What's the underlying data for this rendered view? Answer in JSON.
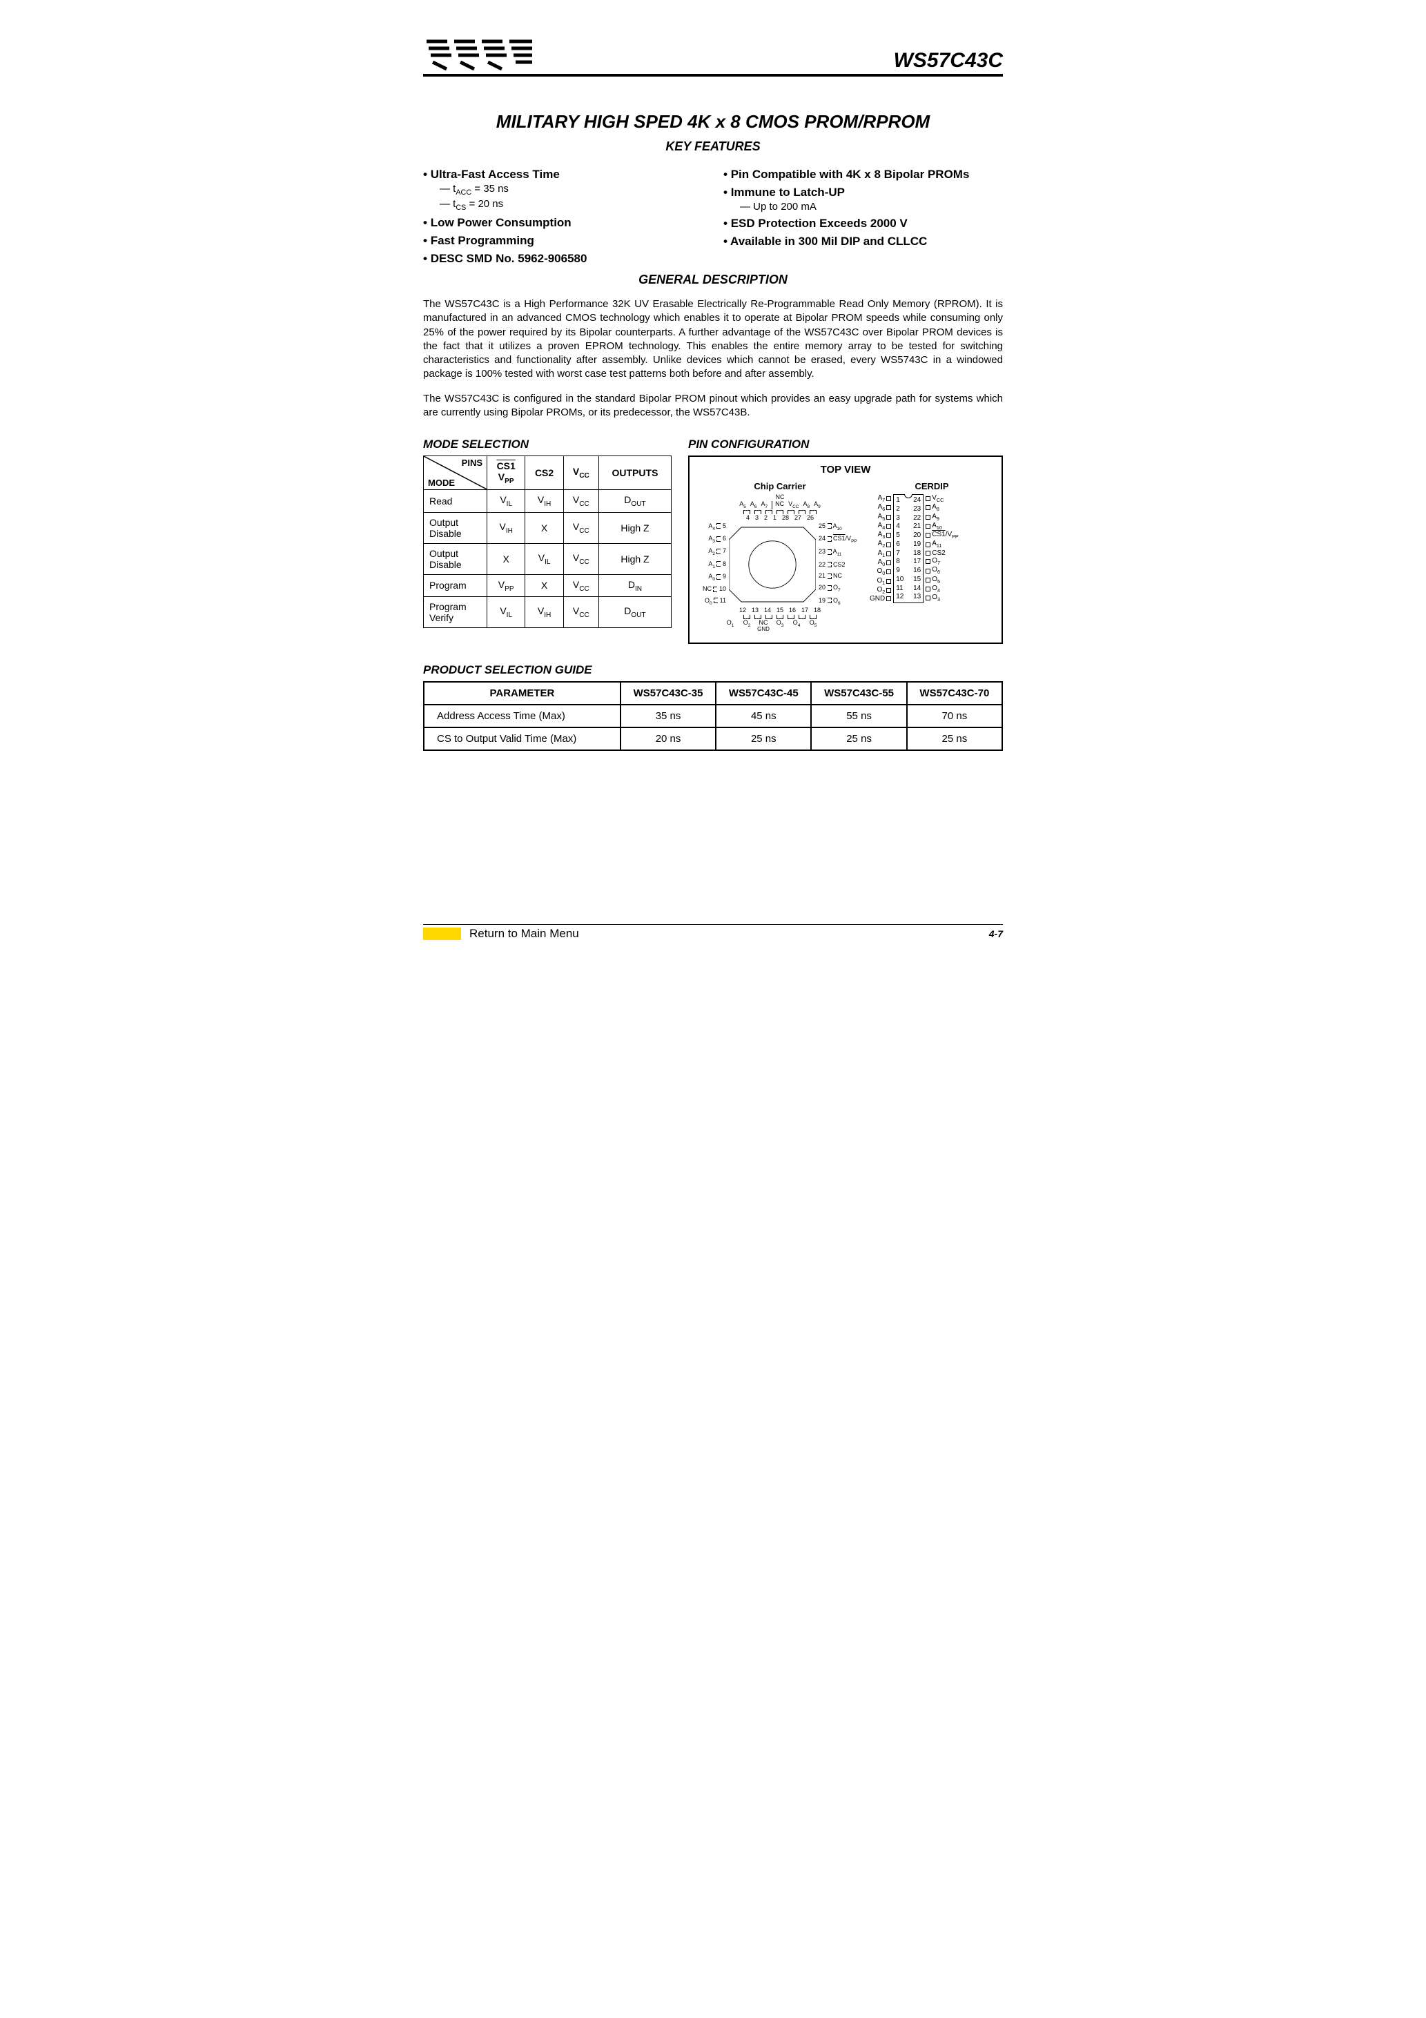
{
  "header": {
    "part_number": "WS57C43C"
  },
  "title": "MILITARY HIGH SPED 4K x 8 CMOS PROM/RPROM",
  "headings": {
    "key_features": "KEY FEATURES",
    "general_description": "GENERAL DESCRIPTION",
    "mode_selection": "MODE SELECTION",
    "pin_configuration": "PIN CONFIGURATION",
    "product_selection_guide": "PRODUCT SELECTION GUIDE"
  },
  "features": {
    "left": [
      {
        "t": "main",
        "text": "Ultra-Fast Access Time"
      },
      {
        "t": "sub",
        "text": "tACC = 35 ns"
      },
      {
        "t": "sub",
        "text": "tCS = 20 ns"
      },
      {
        "t": "main",
        "text": "Low Power Consumption"
      },
      {
        "t": "main",
        "text": "Fast Programming"
      },
      {
        "t": "main",
        "text": "DESC SMD No. 5962-906580"
      }
    ],
    "right": [
      {
        "t": "main",
        "text": "Pin Compatible with 4K x 8 Bipolar PROMs"
      },
      {
        "t": "main",
        "text": "Immune to Latch-UP"
      },
      {
        "t": "sub",
        "text": "Up to 200 mA"
      },
      {
        "t": "main",
        "text": "ESD Protection Exceeds 2000 V"
      },
      {
        "t": "main",
        "text": "Available in 300 Mil DIP and CLLCC"
      }
    ]
  },
  "general_description": {
    "p1": "The WS57C43C is a High Performance 32K UV Erasable Electrically Re-Programmable Read Only Memory (RPROM). It is manufactured in an advanced CMOS technology which enables it to operate at Bipolar PROM speeds while consuming only 25% of the power required by its Bipolar counterparts. A further advantage of the WS57C43C over Bipolar PROM devices is the fact that it utilizes a proven EPROM technology. This enables the entire memory array to be tested for switching characteristics and functionality after assembly. Unlike devices which cannot be erased, every WS5743C in a windowed package is 100% tested with worst case test patterns both before and after assembly.",
    "p2": "The WS57C43C is configured in the standard Bipolar PROM pinout which provides an easy upgrade path for systems which are currently using Bipolar PROMs, or its predecessor, the WS57C43B."
  },
  "mode_table": {
    "corner": {
      "pins": "PINS",
      "mode": "MODE"
    },
    "columns": [
      "CS1_VPP",
      "CS2",
      "VCC",
      "OUTPUTS"
    ],
    "col_headers_html": [
      "<span class='overline'>CS1</span><br>V<sub>PP</sub>",
      "CS2",
      "V<sub>CC</sub>",
      "OUTPUTS"
    ],
    "rows": [
      {
        "mode": "Read",
        "cells": [
          "V<sub>IL</sub>",
          "V<sub>IH</sub>",
          "V<sub>CC</sub>",
          "D<sub>OUT</sub>"
        ]
      },
      {
        "mode": "Output<br>Disable",
        "cells": [
          "V<sub>IH</sub>",
          "X",
          "V<sub>CC</sub>",
          "High Z"
        ]
      },
      {
        "mode": "Output<br>Disable",
        "cells": [
          "X",
          "V<sub>IL</sub>",
          "V<sub>CC</sub>",
          "High Z"
        ]
      },
      {
        "mode": "Program",
        "cells": [
          "V<sub>PP</sub>",
          "X",
          "V<sub>CC</sub>",
          "D<sub>IN</sub>"
        ]
      },
      {
        "mode": "Program<br>Verify",
        "cells": [
          "V<sub>IL</sub>",
          "V<sub>IH</sub>",
          "V<sub>CC</sub>",
          "D<sub>OUT</sub>"
        ]
      }
    ]
  },
  "pin_config": {
    "top_view": "TOP VIEW",
    "chip_carrier": "Chip Carrier",
    "cerdip": "CERDIP",
    "cerdip_left": [
      "A<sub>7</sub>",
      "A<sub>6</sub>",
      "A<sub>5</sub>",
      "A<sub>4</sub>",
      "A<sub>3</sub>",
      "A<sub>2</sub>",
      "A<sub>1</sub>",
      "A<sub>0</sub>",
      "O<sub>0</sub>",
      "O<sub>1</sub>",
      "O<sub>2</sub>",
      "GND"
    ],
    "cerdip_right": [
      "V<sub>CC</sub>",
      "A<sub>8</sub>",
      "A<sub>9</sub>",
      "A<sub>10</sub>",
      "<span class='overline'>CS1</span>/V<sub>PP</sub>",
      "A<sub>11</sub>",
      "CS2",
      "O<sub>7</sub>",
      "O<sub>6</sub>",
      "O<sub>5</sub>",
      "O<sub>4</sub>",
      "O<sub>3</sub>"
    ],
    "carrier_top": [
      "A<sub>5</sub>",
      "A<sub>6</sub>",
      "A<sub>7</sub>",
      "NC",
      "V<sub>CC</sub>",
      "A<sub>8</sub>",
      "A<sub>9</sub>"
    ],
    "carrier_top_nums": [
      "4",
      "3",
      "2",
      "1",
      "28",
      "27",
      "26"
    ],
    "carrier_left": [
      [
        "A<sub>4</sub>",
        "5"
      ],
      [
        "A<sub>3</sub>",
        "6"
      ],
      [
        "A<sub>2</sub>",
        "7"
      ],
      [
        "A<sub>1</sub>",
        "8"
      ],
      [
        "A<sub>0</sub>",
        "9"
      ],
      [
        "NC",
        "10"
      ],
      [
        "O<sub>0</sub>",
        "11"
      ]
    ],
    "carrier_right": [
      [
        "25",
        "A<sub>10</sub>"
      ],
      [
        "24",
        "<span class='overline'>CS1</span>/V<sub>PP</sub>"
      ],
      [
        "23",
        "A<sub>11</sub>"
      ],
      [
        "22",
        "CS2"
      ],
      [
        "21",
        "NC"
      ],
      [
        "20",
        "O<sub>7</sub>"
      ],
      [
        "19",
        "O<sub>6</sub>"
      ]
    ],
    "carrier_bottom_nums": [
      "12",
      "13",
      "14",
      "15",
      "16",
      "17",
      "18"
    ],
    "carrier_bottom": [
      "O<sub>1</sub>",
      "O<sub>2</sub>",
      "NC<br><span style='font-size:8px'>GND</span>",
      "O<sub>3</sub>",
      "O<sub>4</sub>",
      "O<sub>5</sub>",
      ""
    ]
  },
  "psg_table": {
    "columns": [
      "PARAMETER",
      "WS57C43C-35",
      "WS57C43C-45",
      "WS57C43C-55",
      "WS57C43C-70"
    ],
    "rows": [
      [
        "Address Access Time (Max)",
        "35 ns",
        "45 ns",
        "55 ns",
        "70 ns"
      ],
      [
        "CS to Output Valid Time (Max)",
        "20 ns",
        "25 ns",
        "25 ns",
        "25 ns"
      ]
    ]
  },
  "footer": {
    "link": "Return to Main Menu",
    "page": "4-7"
  }
}
